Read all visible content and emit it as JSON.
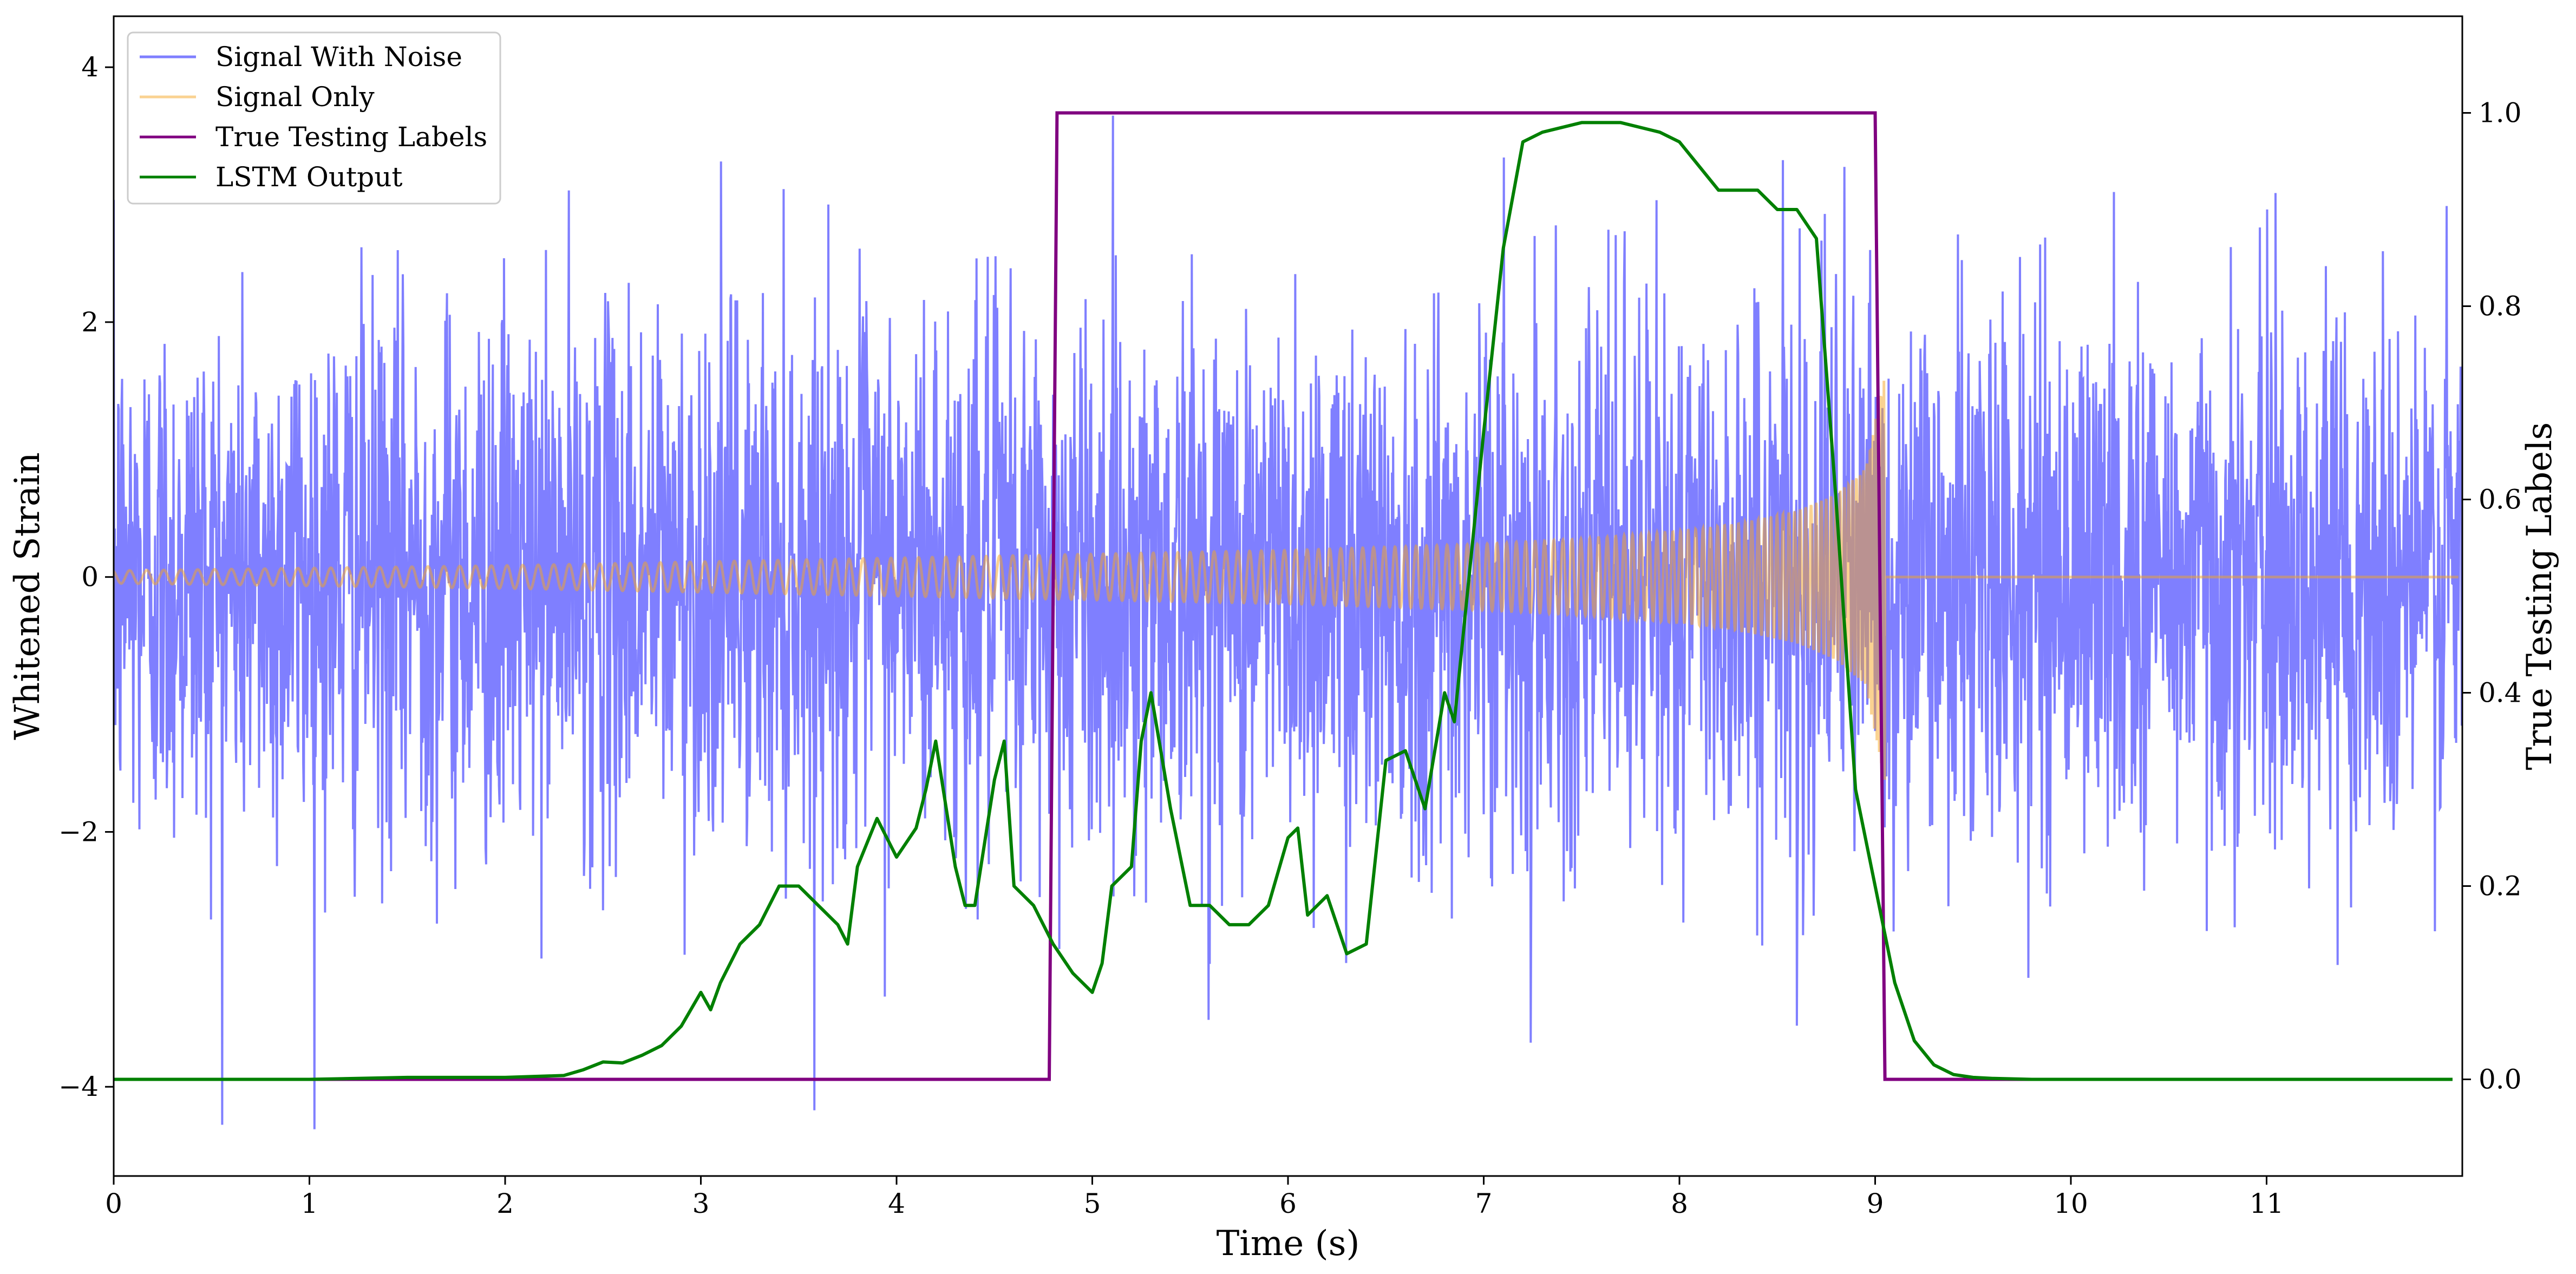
{
  "chart_data": {
    "type": "line",
    "title": "",
    "xlabel": "Time (s)",
    "ylabel_left": "Whitened Strain",
    "ylabel_right": "True Testing Labels",
    "xlim": [
      0,
      12
    ],
    "ylim_left": [
      -4.7,
      4.4
    ],
    "ylim_right": [
      -0.1,
      1.1
    ],
    "x_ticks": [
      0,
      1,
      2,
      3,
      4,
      5,
      6,
      7,
      8,
      9,
      10,
      11
    ],
    "x_tick_labels": [
      "0",
      "1",
      "2",
      "3",
      "4",
      "5",
      "6",
      "7",
      "8",
      "9",
      "10",
      "11"
    ],
    "y_ticks_left": [
      -4,
      -2,
      0,
      2,
      4
    ],
    "y_tick_labels_left": [
      "−4",
      "−2",
      "0",
      "2",
      "4"
    ],
    "y_ticks_right": [
      0.0,
      0.2,
      0.4,
      0.6,
      0.8,
      1.0
    ],
    "y_tick_labels_right": [
      "0.0",
      "0.2",
      "0.4",
      "0.6",
      "0.8",
      "1.0"
    ],
    "grid": false,
    "legend_position": "top-left",
    "series": [
      {
        "name": "Signal With Noise",
        "axis": "left",
        "color": "#7f7fff",
        "style": "noise",
        "noise_std": 1.0,
        "x_range": [
          0,
          12
        ]
      },
      {
        "name": "Signal Only",
        "axis": "left",
        "color": "#f5a623",
        "opacity": 0.5,
        "style": "chirp",
        "x_range": [
          0,
          9.05
        ],
        "envelope": {
          "x": [
            0,
            1,
            2,
            3,
            4,
            5,
            6,
            7,
            7.5,
            8,
            8.3,
            8.6,
            8.8,
            8.95,
            9.05
          ],
          "amp": [
            0.05,
            0.07,
            0.09,
            0.12,
            0.15,
            0.18,
            0.21,
            0.26,
            0.3,
            0.36,
            0.42,
            0.52,
            0.65,
            0.85,
            1.6
          ]
        }
      },
      {
        "name": "True Testing Labels",
        "axis": "right",
        "color": "#800080",
        "style": "step",
        "x": [
          0,
          4.78,
          4.82,
          9.0,
          9.05,
          11.95
        ],
        "y": [
          0,
          0,
          1,
          1,
          0,
          0
        ]
      },
      {
        "name": "LSTM Output",
        "axis": "right",
        "color": "#008000",
        "style": "line",
        "x": [
          0,
          1.0,
          1.5,
          2.0,
          2.3,
          2.4,
          2.5,
          2.6,
          2.7,
          2.8,
          2.9,
          3.0,
          3.05,
          3.1,
          3.2,
          3.3,
          3.4,
          3.5,
          3.6,
          3.7,
          3.75,
          3.8,
          3.9,
          4.0,
          4.1,
          4.15,
          4.2,
          4.3,
          4.35,
          4.4,
          4.5,
          4.55,
          4.6,
          4.7,
          4.8,
          4.9,
          5.0,
          5.05,
          5.1,
          5.2,
          5.25,
          5.3,
          5.4,
          5.5,
          5.6,
          5.7,
          5.8,
          5.9,
          6.0,
          6.05,
          6.1,
          6.2,
          6.3,
          6.4,
          6.5,
          6.6,
          6.7,
          6.8,
          6.85,
          6.9,
          7.0,
          7.1,
          7.2,
          7.3,
          7.5,
          7.7,
          7.9,
          8.0,
          8.2,
          8.4,
          8.5,
          8.6,
          8.7,
          8.8,
          8.9,
          9.0,
          9.1,
          9.2,
          9.3,
          9.4,
          9.5,
          9.6,
          9.8,
          10.0,
          11.0,
          11.95
        ],
        "y": [
          0.0,
          0.0,
          0.002,
          0.002,
          0.004,
          0.01,
          0.018,
          0.017,
          0.025,
          0.035,
          0.055,
          0.09,
          0.072,
          0.1,
          0.14,
          0.16,
          0.2,
          0.2,
          0.18,
          0.16,
          0.14,
          0.22,
          0.27,
          0.23,
          0.26,
          0.3,
          0.35,
          0.22,
          0.18,
          0.18,
          0.31,
          0.35,
          0.2,
          0.18,
          0.14,
          0.11,
          0.09,
          0.12,
          0.2,
          0.22,
          0.35,
          0.4,
          0.28,
          0.18,
          0.18,
          0.16,
          0.16,
          0.18,
          0.25,
          0.26,
          0.17,
          0.19,
          0.13,
          0.14,
          0.33,
          0.34,
          0.28,
          0.4,
          0.37,
          0.47,
          0.67,
          0.86,
          0.97,
          0.98,
          0.99,
          0.99,
          0.98,
          0.97,
          0.92,
          0.92,
          0.9,
          0.9,
          0.87,
          0.6,
          0.3,
          0.2,
          0.1,
          0.04,
          0.015,
          0.005,
          0.002,
          0.001,
          0.0,
          0.0,
          0.0,
          0.0
        ]
      }
    ]
  }
}
